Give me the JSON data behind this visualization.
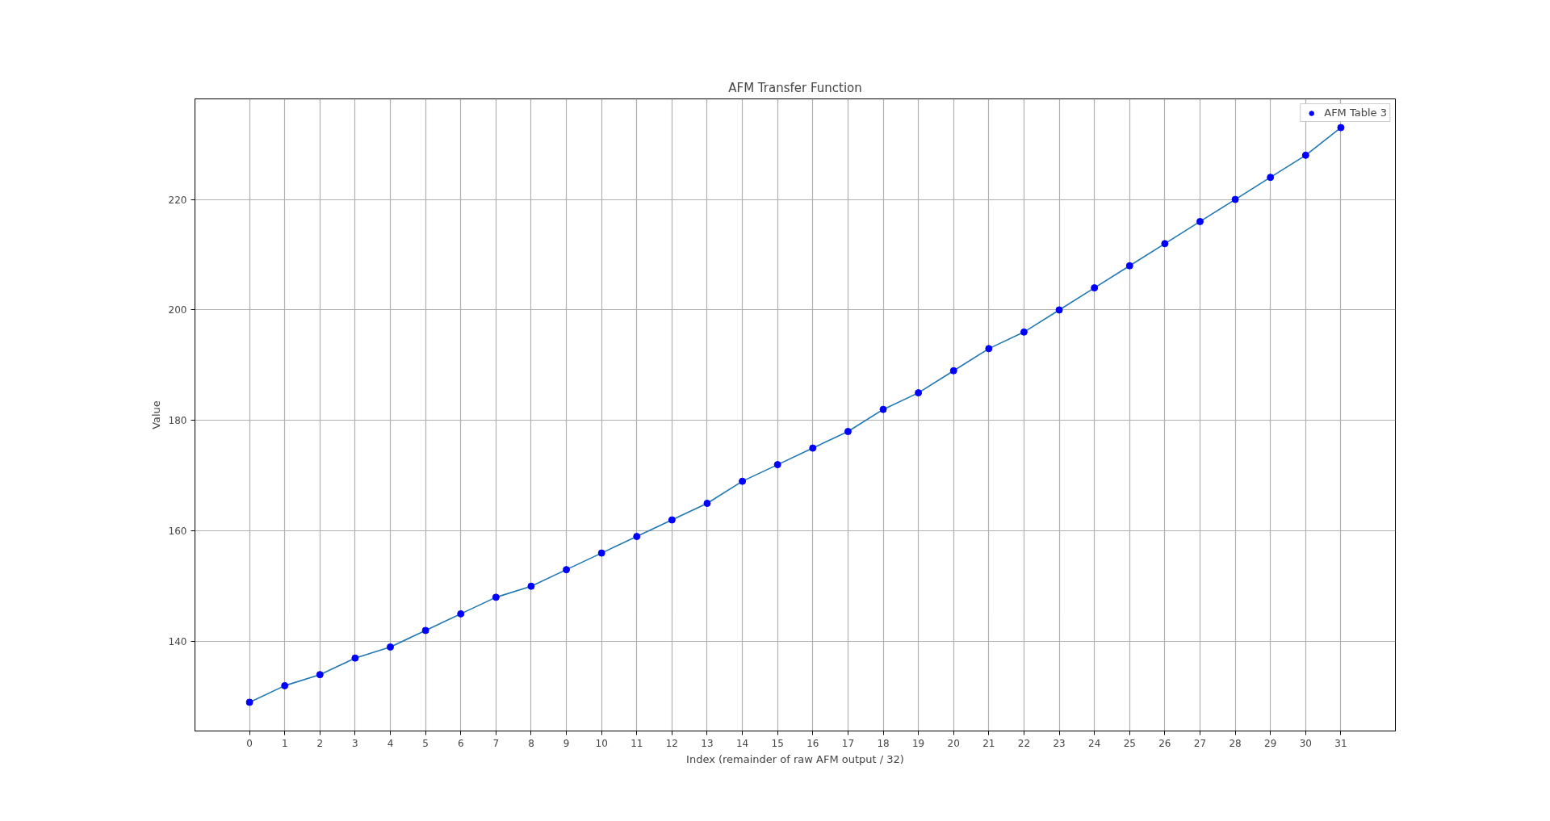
{
  "chart_data": {
    "type": "line",
    "title": "AFM Transfer Function",
    "xlabel": "Index (remainder of raw AFM output / 32)",
    "ylabel": "Value",
    "x": [
      0,
      1,
      2,
      3,
      4,
      5,
      6,
      7,
      8,
      9,
      10,
      11,
      12,
      13,
      14,
      15,
      16,
      17,
      18,
      19,
      20,
      21,
      22,
      23,
      24,
      25,
      26,
      27,
      28,
      29,
      30,
      31
    ],
    "series": [
      {
        "color": "#1f77b4",
        "marker": "none",
        "values": [
          129,
          132,
          134,
          137,
          139,
          142,
          145,
          148,
          150,
          153,
          156,
          159,
          162,
          165,
          169,
          172,
          175,
          178,
          182,
          185,
          189,
          193,
          196,
          200,
          204,
          208,
          212,
          216,
          220,
          224,
          228,
          233
        ]
      },
      {
        "type": "scatter",
        "name": "AFM Table 3",
        "color": "#0000ff",
        "marker": "circle",
        "values": [
          129,
          132,
          134,
          137,
          139,
          142,
          145,
          148,
          150,
          153,
          156,
          159,
          162,
          165,
          169,
          172,
          175,
          178,
          182,
          185,
          189,
          193,
          196,
          200,
          204,
          208,
          212,
          216,
          220,
          224,
          228,
          233
        ]
      }
    ],
    "xlim": [
      -1.55,
      32.55
    ],
    "ylim": [
      123.8,
      238.2
    ],
    "xticks": [
      0,
      1,
      2,
      3,
      4,
      5,
      6,
      7,
      8,
      9,
      10,
      11,
      12,
      13,
      14,
      15,
      16,
      17,
      18,
      19,
      20,
      21,
      22,
      23,
      24,
      25,
      26,
      27,
      28,
      29,
      30,
      31
    ],
    "yticks": [
      140,
      160,
      180,
      200,
      220
    ],
    "grid": true,
    "legend": "top right"
  }
}
